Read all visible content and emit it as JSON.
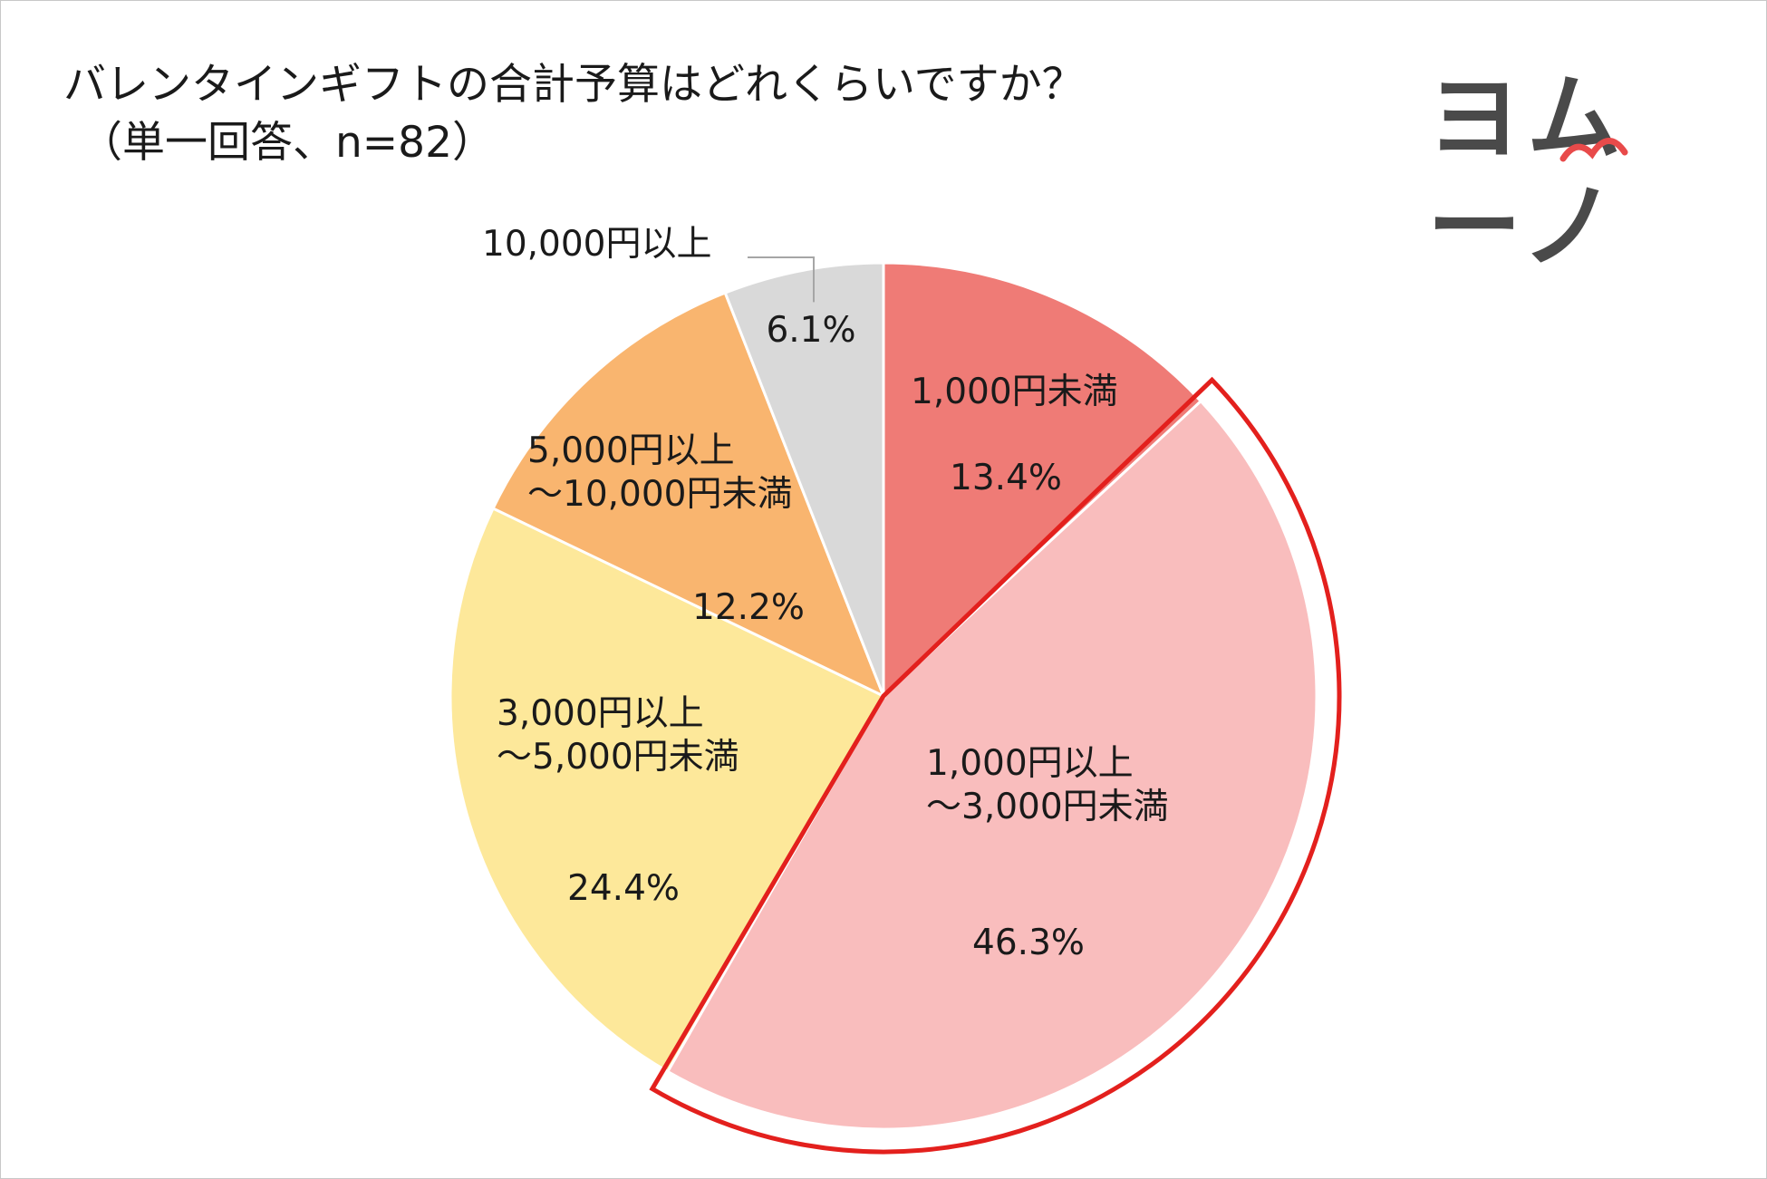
{
  "title": {
    "line1": "バレンタインギフトの合計予算はどれくらいですか？",
    "line2": "（単一回答、n=82）"
  },
  "logo": {
    "text": "ヨムーノ"
  },
  "colors": {
    "slice1": "#ef7b76",
    "slice2": "#f9bdbd",
    "slice3": "#fde89a",
    "slice4": "#f9b56f",
    "slice5": "#d9d9d9",
    "highlight": "#e3201d",
    "logo_accent": "#e84a4a"
  },
  "chart_data": {
    "type": "pie",
    "start": "12 o'clock, clockwise",
    "highlighted_slice": 1,
    "slices": [
      {
        "label_lines": [
          "1,000円未満"
        ],
        "value": 13.4,
        "value_text": "13.4%"
      },
      {
        "label_lines": [
          "1,000円以上",
          "～3,000円未満"
        ],
        "value": 46.3,
        "value_text": "46.3%"
      },
      {
        "label_lines": [
          "3,000円以上",
          "～5,000円未満"
        ],
        "value": 24.4,
        "value_text": "24.4%"
      },
      {
        "label_lines": [
          "5,000円以上",
          "～10,000円未満"
        ],
        "value": 12.2,
        "value_text": "12.2%"
      },
      {
        "label_lines": [
          "10,000円以上"
        ],
        "value": 6.1,
        "value_text": "6.1%"
      }
    ]
  }
}
